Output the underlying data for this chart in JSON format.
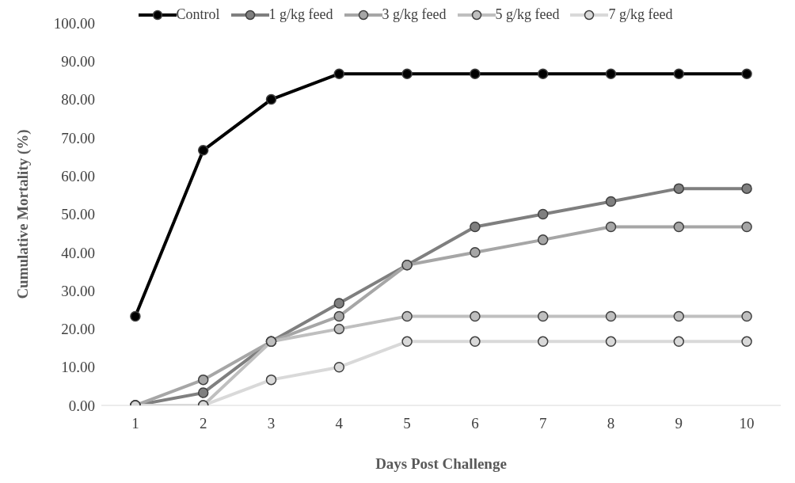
{
  "chart_data": {
    "type": "line",
    "xlabel": "Days Post Challenge",
    "ylabel": "Cumulative Mortality (%)",
    "categories": [
      "1",
      "2",
      "3",
      "4",
      "5",
      "6",
      "7",
      "8",
      "9",
      "10"
    ],
    "series": [
      {
        "name": "Control",
        "color": "#000000",
        "values": [
          23.3,
          66.7,
          80,
          86.7,
          86.7,
          86.7,
          86.7,
          86.7,
          86.7,
          86.7
        ]
      },
      {
        "name": "1 g/kg feed",
        "color": "#7f7f7f",
        "values": [
          0,
          3.3,
          16.7,
          26.7,
          36.7,
          46.7,
          50,
          53.3,
          56.7,
          56.7
        ]
      },
      {
        "name": "3 g/kg feed",
        "color": "#a6a6a6",
        "values": [
          0,
          6.7,
          16.7,
          23.3,
          36.7,
          40,
          43.3,
          46.7,
          46.7,
          46.7
        ]
      },
      {
        "name": "5 g/kg feed",
        "color": "#bfbfbf",
        "values": [
          0,
          0,
          16.7,
          20,
          23.3,
          23.3,
          23.3,
          23.3,
          23.3,
          23.3
        ]
      },
      {
        "name": "7 g/kg feed",
        "color": "#d9d9d9",
        "values": [
          0,
          0,
          6.7,
          10,
          16.7,
          16.7,
          16.7,
          16.7,
          16.7,
          16.7
        ]
      }
    ],
    "ylim": [
      0,
      100
    ],
    "yticks": [
      {
        "value": 0,
        "label": "0.00"
      },
      {
        "value": 10,
        "label": "10.00"
      },
      {
        "value": 20,
        "label": "20.00"
      },
      {
        "value": 30,
        "label": "30.00"
      },
      {
        "value": 40,
        "label": "40.00"
      },
      {
        "value": 50,
        "label": "50.00"
      },
      {
        "value": 60,
        "label": "60.00"
      },
      {
        "value": 70,
        "label": "70.00"
      },
      {
        "value": 80,
        "label": "80.00"
      },
      {
        "value": 90,
        "label": "90.00"
      },
      {
        "value": 100,
        "label": "100.00"
      }
    ],
    "legend": "top",
    "marker": "circle",
    "line_style": "solid",
    "grid": false
  }
}
